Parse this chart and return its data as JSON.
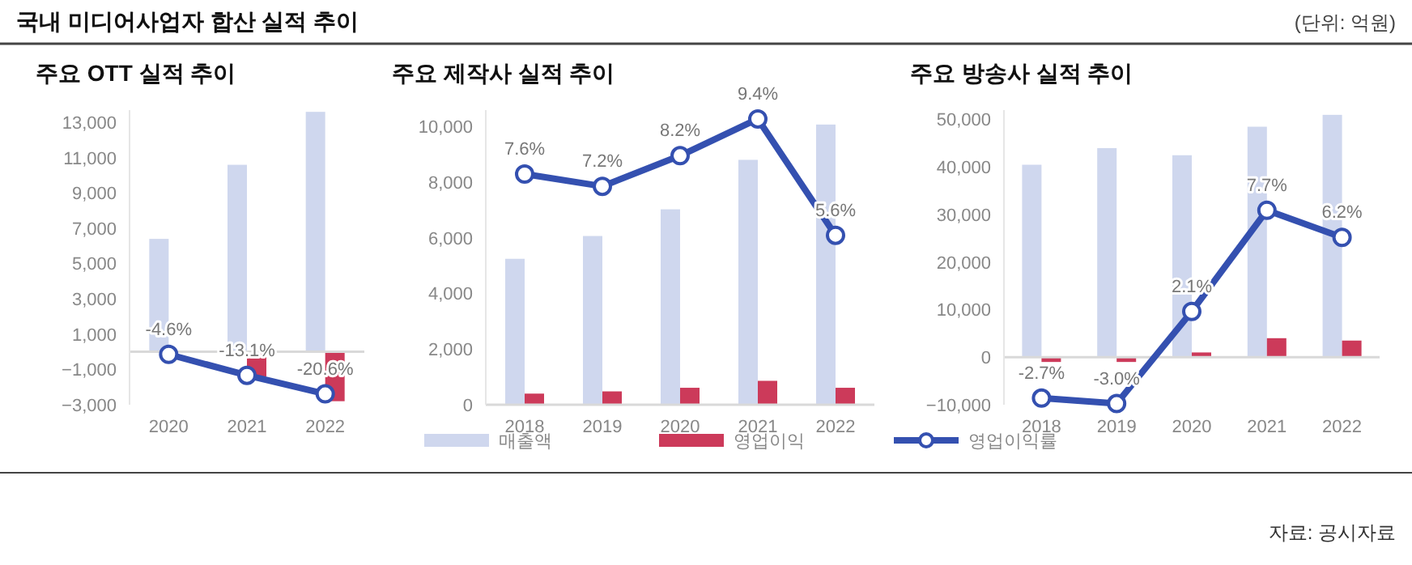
{
  "chart_data": [
    {
      "type": "bar",
      "title": "주요 OTT 실적 추이",
      "annotations": [
        "국내 미디어사업자 합산 실적 추이",
        "(단위: 억원)",
        "자료: 공시자료"
      ],
      "categories": [
        "2020",
        "2021",
        "2022"
      ],
      "series": [
        {
          "type": "bar",
          "color": "#cfd7ee",
          "values": [
            6400,
            10600,
            13600
          ]
        },
        {
          "type": "bar",
          "color": "#cc3a5a",
          "values": [
            null,
            -1400,
            -2800
          ]
        },
        {
          "type": "line",
          "axis": "y2",
          "color": "#3450b0",
          "marker": "circle",
          "values": [
            -4.6,
            -13.1,
            -20.6
          ],
          "value_labels": [
            "-4.6%",
            "-13.1%",
            "-20.6%"
          ]
        }
      ],
      "ylim": [
        -3000,
        13700
      ],
      "yticks": [
        {
          "value": -3000,
          "label": "−3,000"
        },
        {
          "value": -1000,
          "label": "−1,000"
        },
        {
          "value": 1000,
          "label": "1,000"
        },
        {
          "value": 3000,
          "label": "3,000"
        },
        {
          "value": 5000,
          "label": "5,000"
        },
        {
          "value": 7000,
          "label": "7,000"
        },
        {
          "value": 9000,
          "label": "9,000"
        },
        {
          "value": 11000,
          "label": "11,000"
        },
        {
          "value": 13000,
          "label": "13,000"
        }
      ]
    },
    {
      "type": "bar",
      "title": "주요 제작사 실적 추이",
      "categories": [
        "2018",
        "2019",
        "2020",
        "2021",
        "2022"
      ],
      "legend": "bottom",
      "series": [
        {
          "name": "매출액",
          "type": "bar",
          "color": "#cfd7ee",
          "values": [
            5250,
            6070,
            7030,
            8810,
            10080
          ]
        },
        {
          "name": "영업이익",
          "type": "bar",
          "color": "#cc3a5a",
          "values": [
            400,
            480,
            610,
            860,
            610
          ]
        },
        {
          "name": "영업이익률",
          "type": "line",
          "axis": "y2",
          "color": "#3450b0",
          "marker": "circle",
          "values": [
            7.6,
            7.2,
            8.2,
            9.4,
            5.6
          ],
          "value_labels": [
            "7.6%",
            "7.2%",
            "8.2%",
            "9.4%",
            "5.6%"
          ]
        }
      ],
      "ylim": [
        0,
        10600
      ],
      "yticks": [
        0,
        {
          "value": 2000,
          "label": "2,000"
        },
        {
          "value": 4000,
          "label": "4,000"
        },
        {
          "value": 6000,
          "label": "6,000"
        },
        {
          "value": 8000,
          "label": "8,000"
        },
        {
          "value": 10000,
          "label": "10,000"
        }
      ]
    },
    {
      "type": "bar",
      "title": "주요 방송사 실적 추이",
      "categories": [
        "2018",
        "2019",
        "2020",
        "2021",
        "2022"
      ],
      "series": [
        {
          "type": "bar",
          "color": "#cfd7ee",
          "values": [
            40500,
            44000,
            42500,
            48500,
            51000
          ]
        },
        {
          "type": "bar",
          "color": "#cc3a5a",
          "values": [
            -1000,
            -1000,
            1000,
            4000,
            3500
          ]
        },
        {
          "type": "line",
          "axis": "y2",
          "color": "#3450b0",
          "marker": "circle",
          "values": [
            -2.7,
            -3.0,
            2.1,
            7.7,
            6.2
          ],
          "value_labels": [
            "-2.7%",
            "-3.0%",
            "2.1%",
            "7.7%",
            "6.2%"
          ]
        }
      ],
      "ylim": [
        -10000,
        52000
      ],
      "yticks": [
        {
          "value": -10000,
          "label": "−10,000"
        },
        0,
        {
          "value": 10000,
          "label": "10,000"
        },
        {
          "value": 20000,
          "label": "20,000"
        },
        {
          "value": 30000,
          "label": "30,000"
        },
        {
          "value": 40000,
          "label": "40,000"
        },
        {
          "value": 50000,
          "label": "50,000"
        }
      ]
    }
  ]
}
